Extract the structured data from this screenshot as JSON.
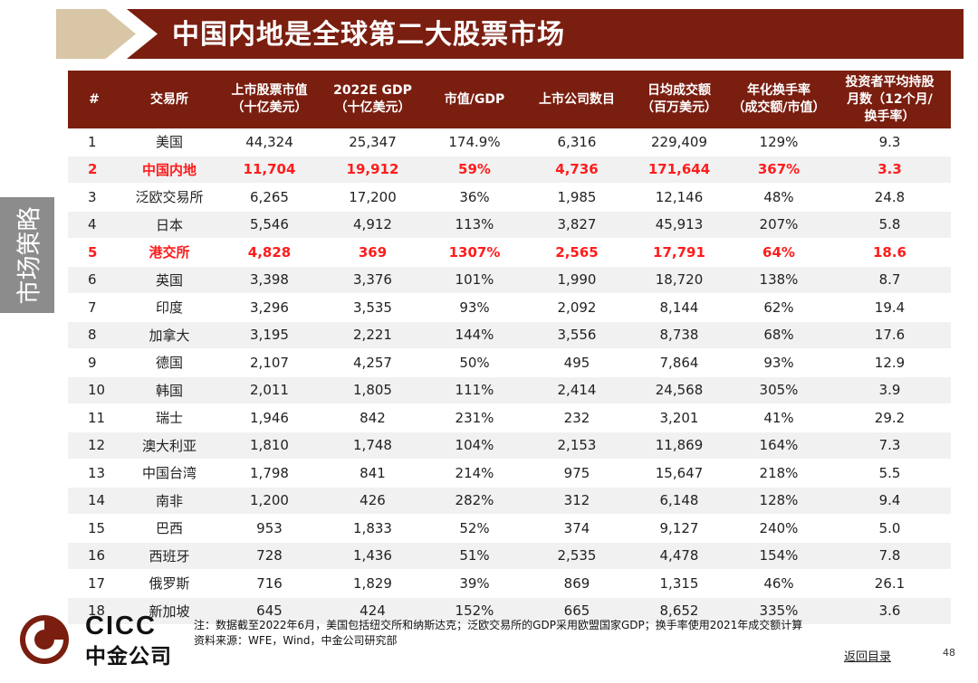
{
  "title": "中国内地是全球第二大股票市场",
  "side_tab": "市场策略",
  "colors": {
    "brand": "#7a1e10",
    "accent_tan": "#d9c6a6",
    "highlight": "#ff1c1c",
    "side_tab": "#8c8c8c"
  },
  "table": {
    "headers": [
      [
        "#"
      ],
      [
        "交易所"
      ],
      [
        "上市股票市值",
        "（十亿美元）"
      ],
      [
        "2022E GDP",
        "（十亿美元）"
      ],
      [
        "市值/GDP"
      ],
      [
        "上市公司数目"
      ],
      [
        "日均成交额",
        "（百万美元）"
      ],
      [
        "年化换手率",
        "（成交额/市值）"
      ],
      [
        "投资者平均持股",
        "月数（12个月/",
        "换手率）"
      ]
    ],
    "rows": [
      [
        "1",
        "美国",
        "44,324",
        "25,347",
        "174.9%",
        "6,316",
        "229,409",
        "129%",
        "9.3"
      ],
      [
        "2",
        "中国内地",
        "11,704",
        "19,912",
        "59%",
        "4,736",
        "171,644",
        "367%",
        "3.3"
      ],
      [
        "3",
        "泛欧交易所",
        "6,265",
        "17,200",
        "36%",
        "1,985",
        "12,146",
        "48%",
        "24.8"
      ],
      [
        "4",
        "日本",
        "5,546",
        "4,912",
        "113%",
        "3,827",
        "45,913",
        "207%",
        "5.8"
      ],
      [
        "5",
        "港交所",
        "4,828",
        "369",
        "1307%",
        "2,565",
        "17,791",
        "64%",
        "18.6"
      ],
      [
        "6",
        "英国",
        "3,398",
        "3,376",
        "101%",
        "1,990",
        "18,720",
        "138%",
        "8.7"
      ],
      [
        "7",
        "印度",
        "3,296",
        "3,535",
        "93%",
        "2,092",
        "8,144",
        "62%",
        "19.4"
      ],
      [
        "8",
        "加拿大",
        "3,195",
        "2,221",
        "144%",
        "3,556",
        "8,738",
        "68%",
        "17.6"
      ],
      [
        "9",
        "德国",
        "2,107",
        "4,257",
        "50%",
        "495",
        "7,864",
        "93%",
        "12.9"
      ],
      [
        "10",
        "韩国",
        "2,011",
        "1,805",
        "111%",
        "2,414",
        "24,568",
        "305%",
        "3.9"
      ],
      [
        "11",
        "瑞士",
        "1,946",
        "842",
        "231%",
        "232",
        "3,201",
        "41%",
        "29.2"
      ],
      [
        "12",
        "澳大利亚",
        "1,810",
        "1,748",
        "104%",
        "2,153",
        "11,869",
        "164%",
        "7.3"
      ],
      [
        "13",
        "中国台湾",
        "1,798",
        "841",
        "214%",
        "975",
        "15,647",
        "218%",
        "5.5"
      ],
      [
        "14",
        "南非",
        "1,200",
        "426",
        "282%",
        "312",
        "6,148",
        "128%",
        "9.4"
      ],
      [
        "15",
        "巴西",
        "953",
        "1,833",
        "52%",
        "374",
        "9,127",
        "240%",
        "5.0"
      ],
      [
        "16",
        "西班牙",
        "728",
        "1,436",
        "51%",
        "2,535",
        "4,478",
        "154%",
        "7.8"
      ],
      [
        "17",
        "俄罗斯",
        "716",
        "1,829",
        "39%",
        "869",
        "1,315",
        "46%",
        "26.1"
      ],
      [
        "18",
        "新加坡",
        "645",
        "424",
        "152%",
        "665",
        "8,652",
        "335%",
        "3.6"
      ]
    ],
    "highlighted_rows": [
      "2",
      "5"
    ]
  },
  "footer": {
    "note": "注：数据截至2022年6月，美国包括纽交所和纳斯达克；泛欧交易所的GDP采用欧盟国家GDP；换手率使用2021年成交额计算",
    "source": "资料来源：WFE，Wind，中金公司研究部",
    "back_link": "返回目录",
    "page_number": "48",
    "logo_en": "CICC",
    "logo_cn": "中金公司"
  }
}
